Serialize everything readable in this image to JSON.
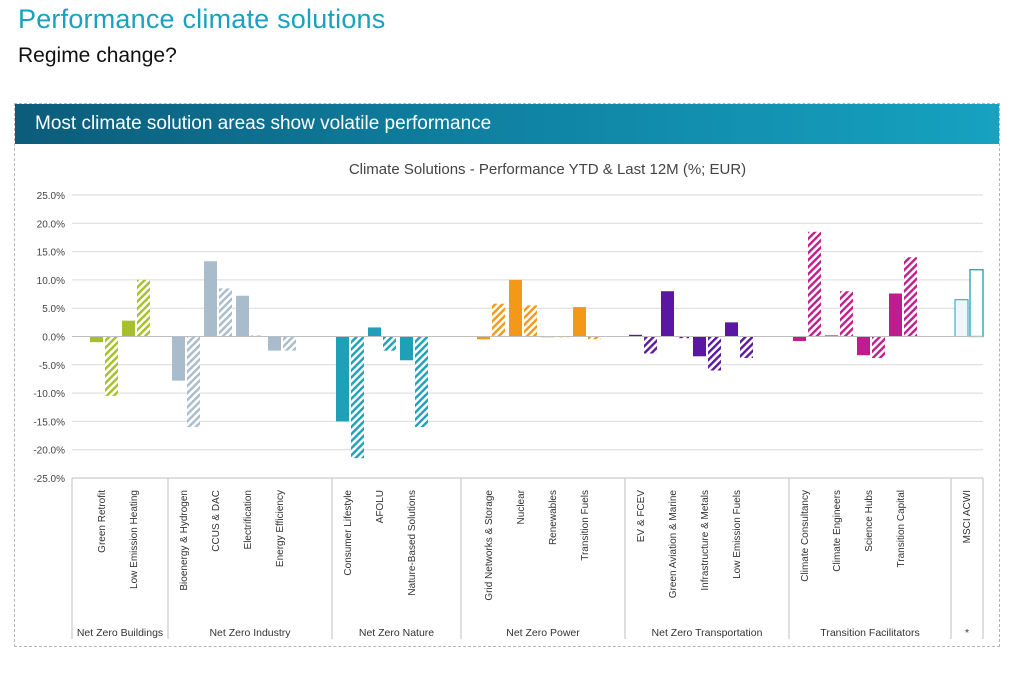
{
  "page": {
    "title": "Performance climate solutions",
    "subtitle": "Regime change?"
  },
  "panel": {
    "header": "Most climate solution areas show volatile performance"
  },
  "colors": {
    "title": "#1aa0c0",
    "header": "#0f7fa0"
  },
  "chart_data": {
    "type": "bar",
    "title": "Climate Solutions - Performance YTD & Last 12M (%; EUR)",
    "xlabel": "",
    "ylabel": "",
    "ylim": [
      -25,
      25
    ],
    "yticks": [
      "25.0%",
      "20.0%",
      "15.0%",
      "10.0%",
      "5.0%",
      "0.0%",
      "-5.0%",
      "-10.0%",
      "-15.0%",
      "-20.0%",
      "-25.0%"
    ],
    "series_names": [
      "YTD",
      "Last 12M"
    ],
    "groups": [
      {
        "name": "Net Zero Buildings",
        "color": "#a6bf2a",
        "items": [
          {
            "label": "Green Retrofit",
            "ytd": -1.0,
            "l12m": -10.5
          },
          {
            "label": "Low Emission Heating",
            "ytd": 2.8,
            "l12m": 10.0
          }
        ]
      },
      {
        "name": "Net Zero Industry",
        "color": "#a9bccb",
        "items": [
          {
            "label": "Bioenergy & Hydrogen",
            "ytd": -7.8,
            "l12m": -16.0
          },
          {
            "label": "CCUS & DAC",
            "ytd": 13.3,
            "l12m": 8.5
          },
          {
            "label": "Electrification",
            "ytd": 7.2,
            "l12m": 0.2
          },
          {
            "label": "Energy Efficiency",
            "ytd": -2.5,
            "l12m": -2.5
          }
        ]
      },
      {
        "name": "Net Zero Nature",
        "color": "#1f9fb8",
        "items": [
          {
            "label": "Consumer Lifestyle",
            "ytd": -15.0,
            "l12m": -21.5
          },
          {
            "label": "AFOLU",
            "ytd": 1.6,
            "l12m": -2.5
          },
          {
            "label": "Nature-Based Solutions",
            "ytd": -4.2,
            "l12m": -16.0
          }
        ]
      },
      {
        "name": "Net Zero Power",
        "color": "#f39819",
        "items": [
          {
            "label": "Grid Networks & Storage",
            "ytd": -0.5,
            "l12m": 5.8
          },
          {
            "label": "Nuclear",
            "ytd": 10.0,
            "l12m": 5.5
          },
          {
            "label": "Renewables",
            "ytd": 0.0,
            "l12m": 0.0
          },
          {
            "label": "Transition Fuels",
            "ytd": 5.2,
            "l12m": -0.5
          }
        ]
      },
      {
        "name": "Net Zero Transportation",
        "color": "#5a17a3",
        "items": [
          {
            "label": "EV & FCEV",
            "ytd": 0.3,
            "l12m": -3.0
          },
          {
            "label": "Green Aviation & Marine",
            "ytd": 8.0,
            "l12m": -0.3
          },
          {
            "label": "Infrastructure & Metals",
            "ytd": -3.5,
            "l12m": -6.0
          },
          {
            "label": "Low Emission Fuels",
            "ytd": 2.5,
            "l12m": -3.8
          }
        ]
      },
      {
        "name": "Transition Facilitators",
        "color": "#be1e8c",
        "items": [
          {
            "label": "Climate Consultancy",
            "ytd": -0.8,
            "l12m": 18.5
          },
          {
            "label": "Climate Engineers",
            "ytd": 0.2,
            "l12m": 8.0
          },
          {
            "label": "Science Hubs",
            "ytd": -3.3,
            "l12m": -3.8
          },
          {
            "label": "Transition Capital",
            "ytd": 7.6,
            "l12m": 14.0
          }
        ]
      },
      {
        "name": "*",
        "color": "#1f9fb8",
        "benchmark": true,
        "items": [
          {
            "label": "MSCI ACWI",
            "ytd": 6.5,
            "l12m": 11.8
          }
        ]
      }
    ]
  }
}
